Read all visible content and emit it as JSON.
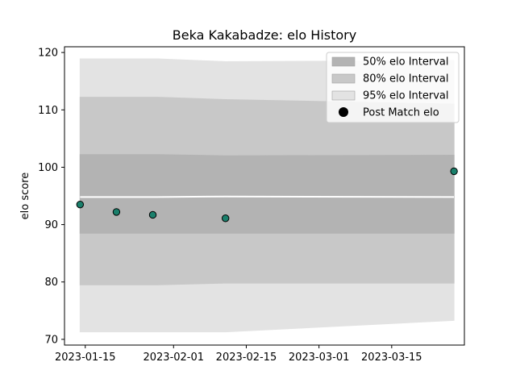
{
  "chart_data": {
    "type": "area",
    "title": "Beka Kakabadze: elo History",
    "xlabel": "",
    "ylabel": "elo score",
    "x_ticks": [
      "2023-01-15",
      "2023-02-01",
      "2023-02-15",
      "2023-03-01",
      "2023-03-15"
    ],
    "y_ticks": [
      70,
      80,
      90,
      100,
      110,
      120
    ],
    "xlim": [
      "2023-01-11",
      "2023-03-29"
    ],
    "ylim": [
      69.0,
      121.0
    ],
    "grid": false,
    "legend_placement": "upper right",
    "dates": [
      "2023-01-14",
      "2023-01-29",
      "2023-02-11",
      "2023-03-27"
    ],
    "median": [
      94.8,
      94.8,
      94.9,
      94.8
    ],
    "bands": [
      {
        "name": "95% elo Interval",
        "color": "#e3e3e3",
        "lower": [
          71.3,
          71.3,
          71.3,
          73.3
        ],
        "upper": [
          118.9,
          118.9,
          118.4,
          118.6
        ]
      },
      {
        "name": "80% elo Interval",
        "color": "#c8c8c8",
        "lower": [
          79.5,
          79.5,
          79.8,
          79.8
        ],
        "upper": [
          112.2,
          112.2,
          111.8,
          111.0
        ]
      },
      {
        "name": "50% elo Interval",
        "color": "#b3b3b3",
        "lower": [
          88.5,
          88.5,
          88.5,
          88.5
        ],
        "upper": [
          102.2,
          102.2,
          102.0,
          102.1
        ]
      }
    ],
    "post_match": {
      "name": "Post Match elo",
      "color": "#1a7f6b",
      "x": [
        "2023-01-14",
        "2023-01-21",
        "2023-01-28",
        "2023-02-11",
        "2023-03-27"
      ],
      "y": [
        93.5,
        92.2,
        91.7,
        91.1,
        99.3
      ]
    },
    "legend": [
      {
        "label": "50% elo Interval",
        "kind": "band",
        "color": "#b3b3b3"
      },
      {
        "label": "80% elo Interval",
        "kind": "band",
        "color": "#c8c8c8"
      },
      {
        "label": "95% elo Interval",
        "kind": "band",
        "color": "#e3e3e3"
      },
      {
        "label": "Post Match elo",
        "kind": "marker",
        "color": "#000000"
      }
    ]
  }
}
